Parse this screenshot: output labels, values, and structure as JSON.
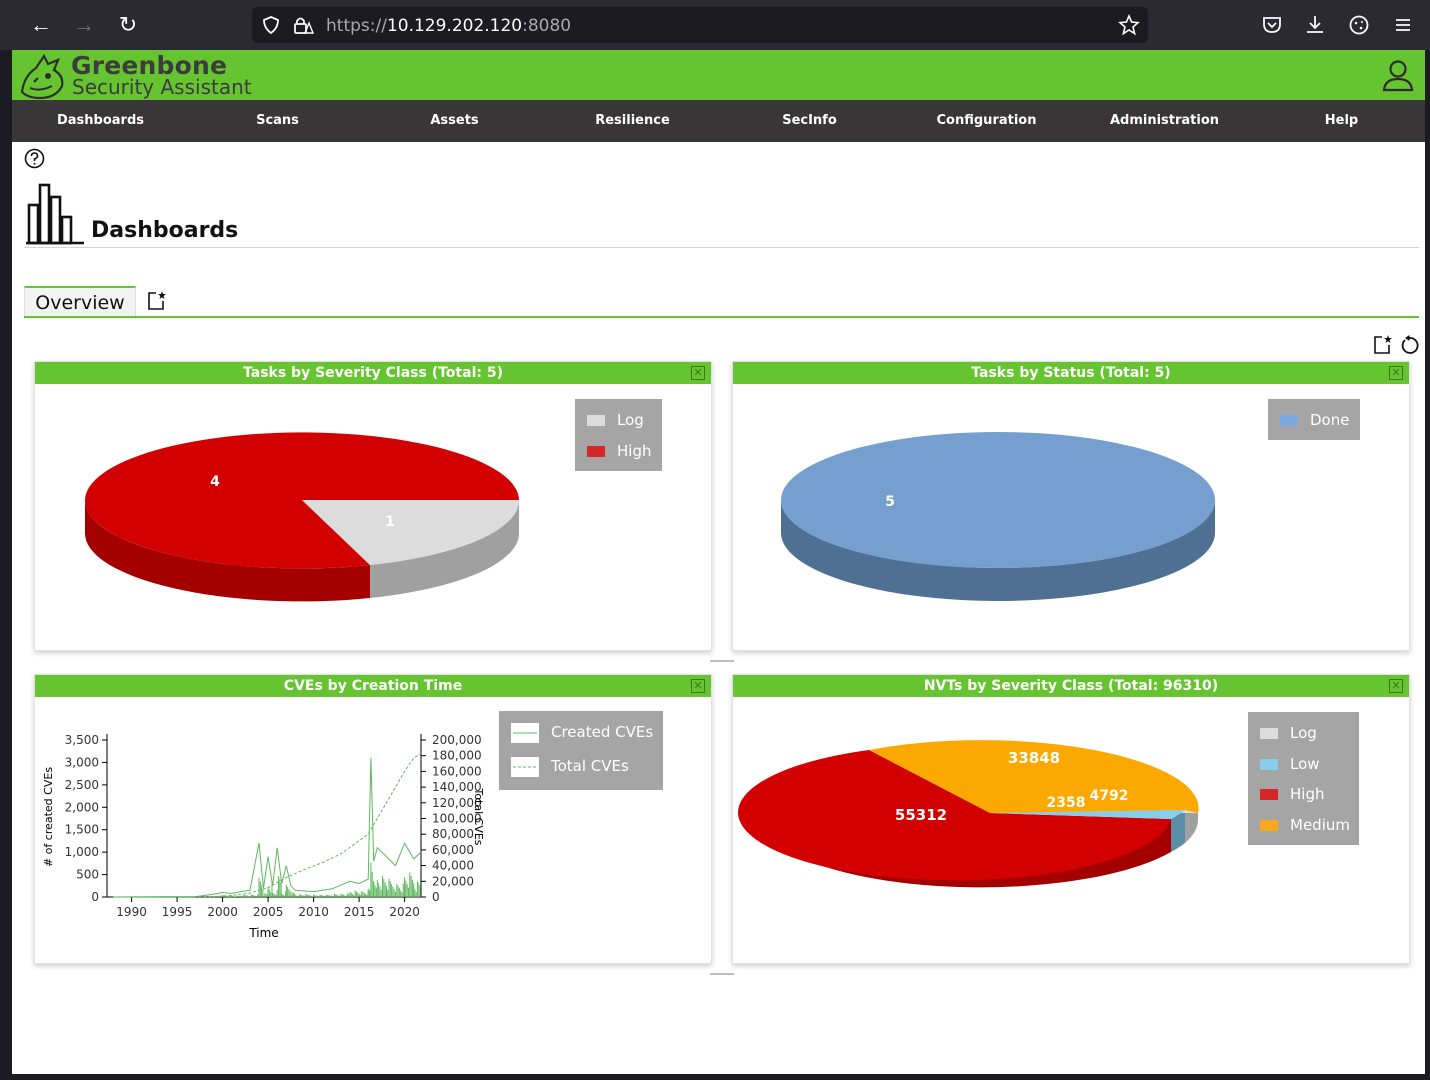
{
  "browser": {
    "url_prefix": "https://",
    "url_host": "10.129.202.120",
    "url_port": ":8080"
  },
  "app": {
    "title": "Greenbone",
    "subtitle": "Security Assistant"
  },
  "menu": [
    "Dashboards",
    "Scans",
    "Assets",
    "Resilience",
    "SecInfo",
    "Configuration",
    "Administration",
    "Help"
  ],
  "page": {
    "title": "Dashboards",
    "tab": "Overview"
  },
  "panels": {
    "severity": {
      "title": "Tasks by Severity Class (Total: 5)",
      "legend": [
        {
          "label": "Log",
          "color": "#dcdcdc"
        },
        {
          "label": "High",
          "color": "#d62728"
        }
      ],
      "labels": [
        "4",
        "1"
      ]
    },
    "status": {
      "title": "Tasks by Status (Total: 5)",
      "legend": [
        {
          "label": "Done",
          "color": "#7aaadc"
        }
      ],
      "labels": [
        "5"
      ]
    },
    "cves": {
      "title": "CVEs by Creation Time",
      "legend": [
        "Created CVEs",
        "Total CVEs"
      ],
      "xlabel": "Time",
      "ylabel_left": "# of created CVEs",
      "ylabel_right": "Total CVEs"
    },
    "nvts": {
      "title": "NVTs by Severity Class (Total: 96310)",
      "legend": [
        {
          "label": "Log",
          "color": "#dcdcdc"
        },
        {
          "label": "Low",
          "color": "#87ceeb"
        },
        {
          "label": "High",
          "color": "#d62728"
        },
        {
          "label": "Medium",
          "color": "#f8a81e"
        }
      ],
      "labels": [
        "33848",
        "55312",
        "2358",
        "4792"
      ]
    }
  },
  "chart_data": [
    {
      "type": "pie",
      "title": "Tasks by Severity Class (Total: 5)",
      "slices": [
        {
          "label": "High",
          "value": 4,
          "color": "#d20000"
        },
        {
          "label": "Log",
          "value": 1,
          "color": "#dcdcdc"
        }
      ]
    },
    {
      "type": "pie",
      "title": "Tasks by Status (Total: 5)",
      "slices": [
        {
          "label": "Done",
          "value": 5,
          "color": "#749fcf"
        }
      ]
    },
    {
      "type": "line",
      "title": "CVEs by Creation Time",
      "xlabel": "Time",
      "x_ticks": [
        1990,
        1995,
        2000,
        2005,
        2010,
        2015,
        2020
      ],
      "y_left_ticks": [
        "0",
        "500",
        "1,000",
        "1,500",
        "2,000",
        "2,500",
        "3,000",
        "3,500"
      ],
      "y_right_ticks": [
        "0",
        "20,000",
        "40,000",
        "60,000",
        "80,000",
        "100,000",
        "120,000",
        "140,000",
        "160,000",
        "180,000",
        "200,000"
      ],
      "ylim_left": [
        0,
        3500
      ],
      "ylim_right": [
        0,
        200000
      ],
      "series": [
        {
          "name": "Created CVEs",
          "axis": "left",
          "style": "solid",
          "color": "#5cb85c",
          "points": [
            [
              1988,
              0
            ],
            [
              1997,
              10
            ],
            [
              1999,
              60
            ],
            [
              2000,
              100
            ],
            [
              2001,
              80
            ],
            [
              2002,
              120
            ],
            [
              2003,
              150
            ],
            [
              2004,
              1200
            ],
            [
              2004.5,
              200
            ],
            [
              2005,
              900
            ],
            [
              2005.5,
              250
            ],
            [
              2006,
              1100
            ],
            [
              2006.5,
              300
            ],
            [
              2007,
              700
            ],
            [
              2007.5,
              250
            ],
            [
              2008,
              150
            ],
            [
              2010,
              120
            ],
            [
              2012,
              180
            ],
            [
              2014,
              350
            ],
            [
              2015,
              300
            ],
            [
              2016,
              400
            ],
            [
              2016.3,
              3100
            ],
            [
              2016.6,
              800
            ],
            [
              2017,
              1100
            ],
            [
              2018,
              900
            ],
            [
              2019,
              700
            ],
            [
              2020,
              1200
            ],
            [
              2021,
              850
            ],
            [
              2021.8,
              1000
            ]
          ]
        },
        {
          "name": "Total CVEs",
          "axis": "right",
          "style": "dashed",
          "color": "#5cb85c",
          "points": [
            [
              1988,
              0
            ],
            [
              1999,
              500
            ],
            [
              2001,
              2000
            ],
            [
              2003,
              5000
            ],
            [
              2005,
              12000
            ],
            [
              2007,
              25000
            ],
            [
              2009,
              35000
            ],
            [
              2011,
              44000
            ],
            [
              2013,
              55000
            ],
            [
              2016,
              80000
            ],
            [
              2017,
              100000
            ],
            [
              2018,
              120000
            ],
            [
              2019,
              140000
            ],
            [
              2020,
              160000
            ],
            [
              2021,
              177000
            ],
            [
              2021.8,
              183000
            ]
          ]
        }
      ]
    },
    {
      "type": "pie",
      "title": "NVTs by Severity Class (Total: 96310)",
      "slices": [
        {
          "label": "Log",
          "value": 4792,
          "color": "#dcdcdc"
        },
        {
          "label": "Low",
          "value": 2358,
          "color": "#87ceeb"
        },
        {
          "label": "High",
          "value": 55312,
          "color": "#d20000"
        },
        {
          "label": "Medium",
          "value": 33848,
          "color": "#fba800"
        }
      ]
    }
  ]
}
